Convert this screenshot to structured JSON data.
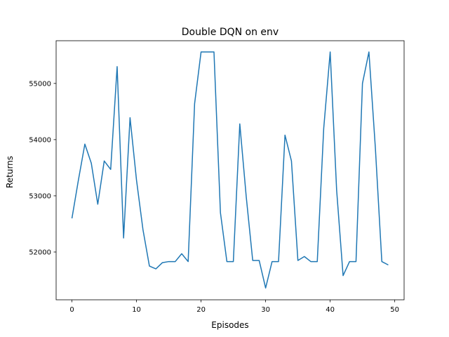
{
  "chart_data": {
    "type": "line",
    "title": "Double DQN on env",
    "xlabel": "Episodes",
    "ylabel": "Returns",
    "xlim": [
      -2.45,
      51.45
    ],
    "ylim": [
      51150,
      55760
    ],
    "xticks": [
      0,
      10,
      20,
      30,
      40,
      50
    ],
    "yticks": [
      52000,
      53000,
      54000,
      55000
    ],
    "grid": false,
    "series": [
      {
        "color": "#1f77b4",
        "x": [
          0,
          1,
          2,
          3,
          4,
          5,
          6,
          7,
          8,
          9,
          10,
          11,
          12,
          13,
          14,
          15,
          16,
          17,
          18,
          19,
          20,
          21,
          22,
          23,
          24,
          25,
          26,
          27,
          28,
          29,
          30,
          31,
          32,
          33,
          34,
          35,
          36,
          37,
          38,
          39,
          40,
          41,
          42,
          43,
          44,
          45,
          46,
          47,
          48,
          49
        ],
        "y": [
          52600,
          53280,
          53920,
          53580,
          52850,
          53620,
          53470,
          55300,
          52250,
          54390,
          53280,
          52400,
          51750,
          51700,
          51810,
          51830,
          51830,
          51970,
          51830,
          54640,
          55560,
          55560,
          55560,
          52700,
          51830,
          51830,
          54280,
          52980,
          51850,
          51850,
          51360,
          51830,
          51830,
          54080,
          53620,
          51850,
          51920,
          51830,
          51830,
          54200,
          55560,
          53100,
          51580,
          51830,
          51830,
          55000,
          55560,
          53850,
          51830,
          51770
        ]
      }
    ]
  }
}
